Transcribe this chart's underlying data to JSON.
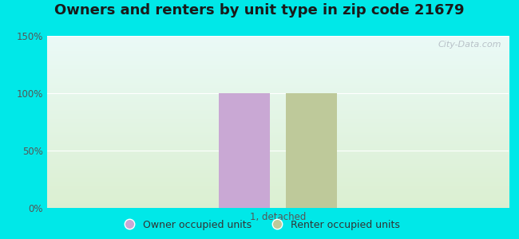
{
  "title": "Owners and renters by unit type in zip code 21679",
  "categories": [
    "1, detached"
  ],
  "owner_values": [
    100
  ],
  "renter_values": [
    100
  ],
  "owner_color": "#c9a8d4",
  "renter_color": "#bec99a",
  "ylim": [
    0,
    150
  ],
  "yticks": [
    0,
    50,
    100,
    150
  ],
  "ytick_labels": [
    "0%",
    "50%",
    "100%",
    "150%"
  ],
  "outer_bg": "#00e8e8",
  "watermark": "City-Data.com",
  "legend_owner": "Owner occupied units",
  "legend_renter": "Renter occupied units",
  "bar_width": 0.22,
  "bar_gap": 0.07,
  "title_fontsize": 13
}
